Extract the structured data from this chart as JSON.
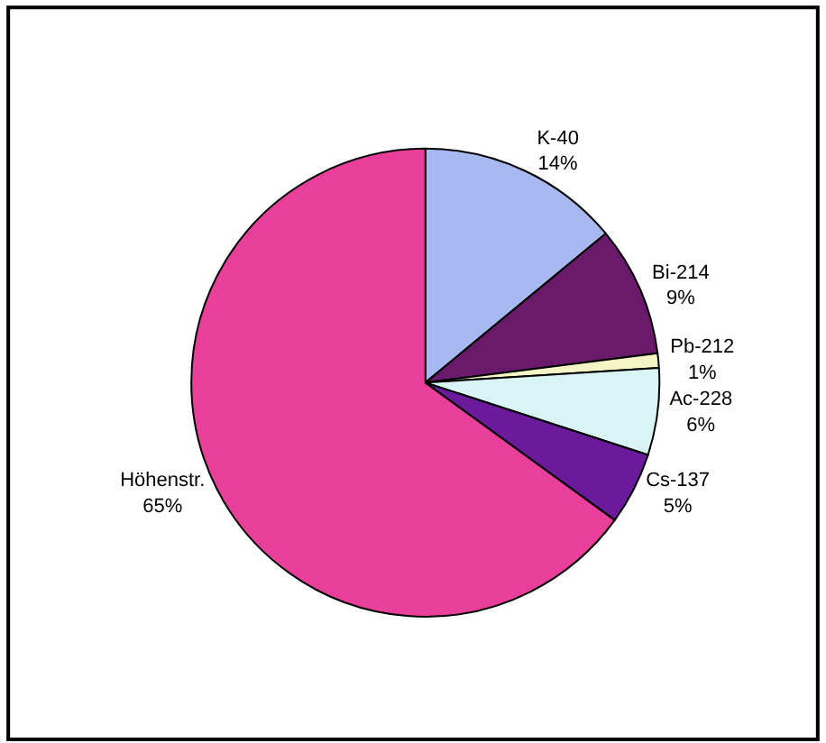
{
  "chart_data": {
    "type": "pie",
    "categories": [
      "K-40",
      "Bi-214",
      "Pb-212",
      "Ac-228",
      "Cs-137",
      "Höhenstr."
    ],
    "values": [
      14,
      9,
      1,
      6,
      5,
      65
    ],
    "value_labels": [
      "14%",
      "9%",
      "1%",
      "6%",
      "5%",
      "65%"
    ],
    "colors": [
      "#a8b8f0",
      "#6a1a6a",
      "#f4f4c4",
      "#d8f4f4",
      "#6a1a9a",
      "#e8409a"
    ],
    "legend": false
  }
}
